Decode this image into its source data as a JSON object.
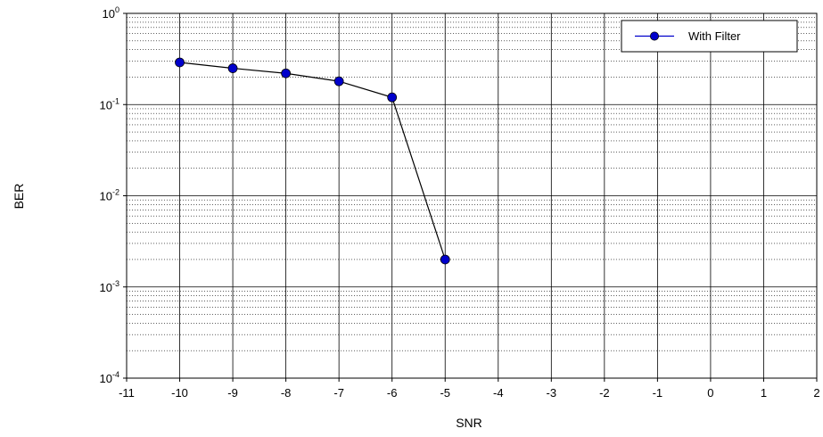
{
  "chart_data": {
    "type": "line",
    "xlabel": "SNR",
    "ylabel": "BER",
    "xlim": [
      -11,
      2
    ],
    "ylim": [
      0.0001,
      1
    ],
    "yscale": "log",
    "x_ticks": [
      "-11",
      "-10",
      "-9",
      "-8",
      "-7",
      "-6",
      "-5",
      "-4",
      "-3",
      "-2",
      "-1",
      "0",
      "1",
      "2"
    ],
    "y_ticks": [
      {
        "value": 1,
        "base": "10",
        "exp": "0"
      },
      {
        "value": 0.1,
        "base": "10",
        "exp": "-1"
      },
      {
        "value": 0.01,
        "base": "10",
        "exp": "-2"
      },
      {
        "value": 0.001,
        "base": "10",
        "exp": "-3"
      },
      {
        "value": 0.0001,
        "base": "10",
        "exp": "-4"
      }
    ],
    "grid": true,
    "legend_position": "top-right",
    "series": [
      {
        "name": "With Filter",
        "color": "#0000cc",
        "line_color": "#000000",
        "x": [
          -10,
          -9,
          -8,
          -7,
          -6,
          -5
        ],
        "y": [
          0.29,
          0.25,
          0.22,
          0.18,
          0.12,
          0.002
        ]
      }
    ]
  }
}
